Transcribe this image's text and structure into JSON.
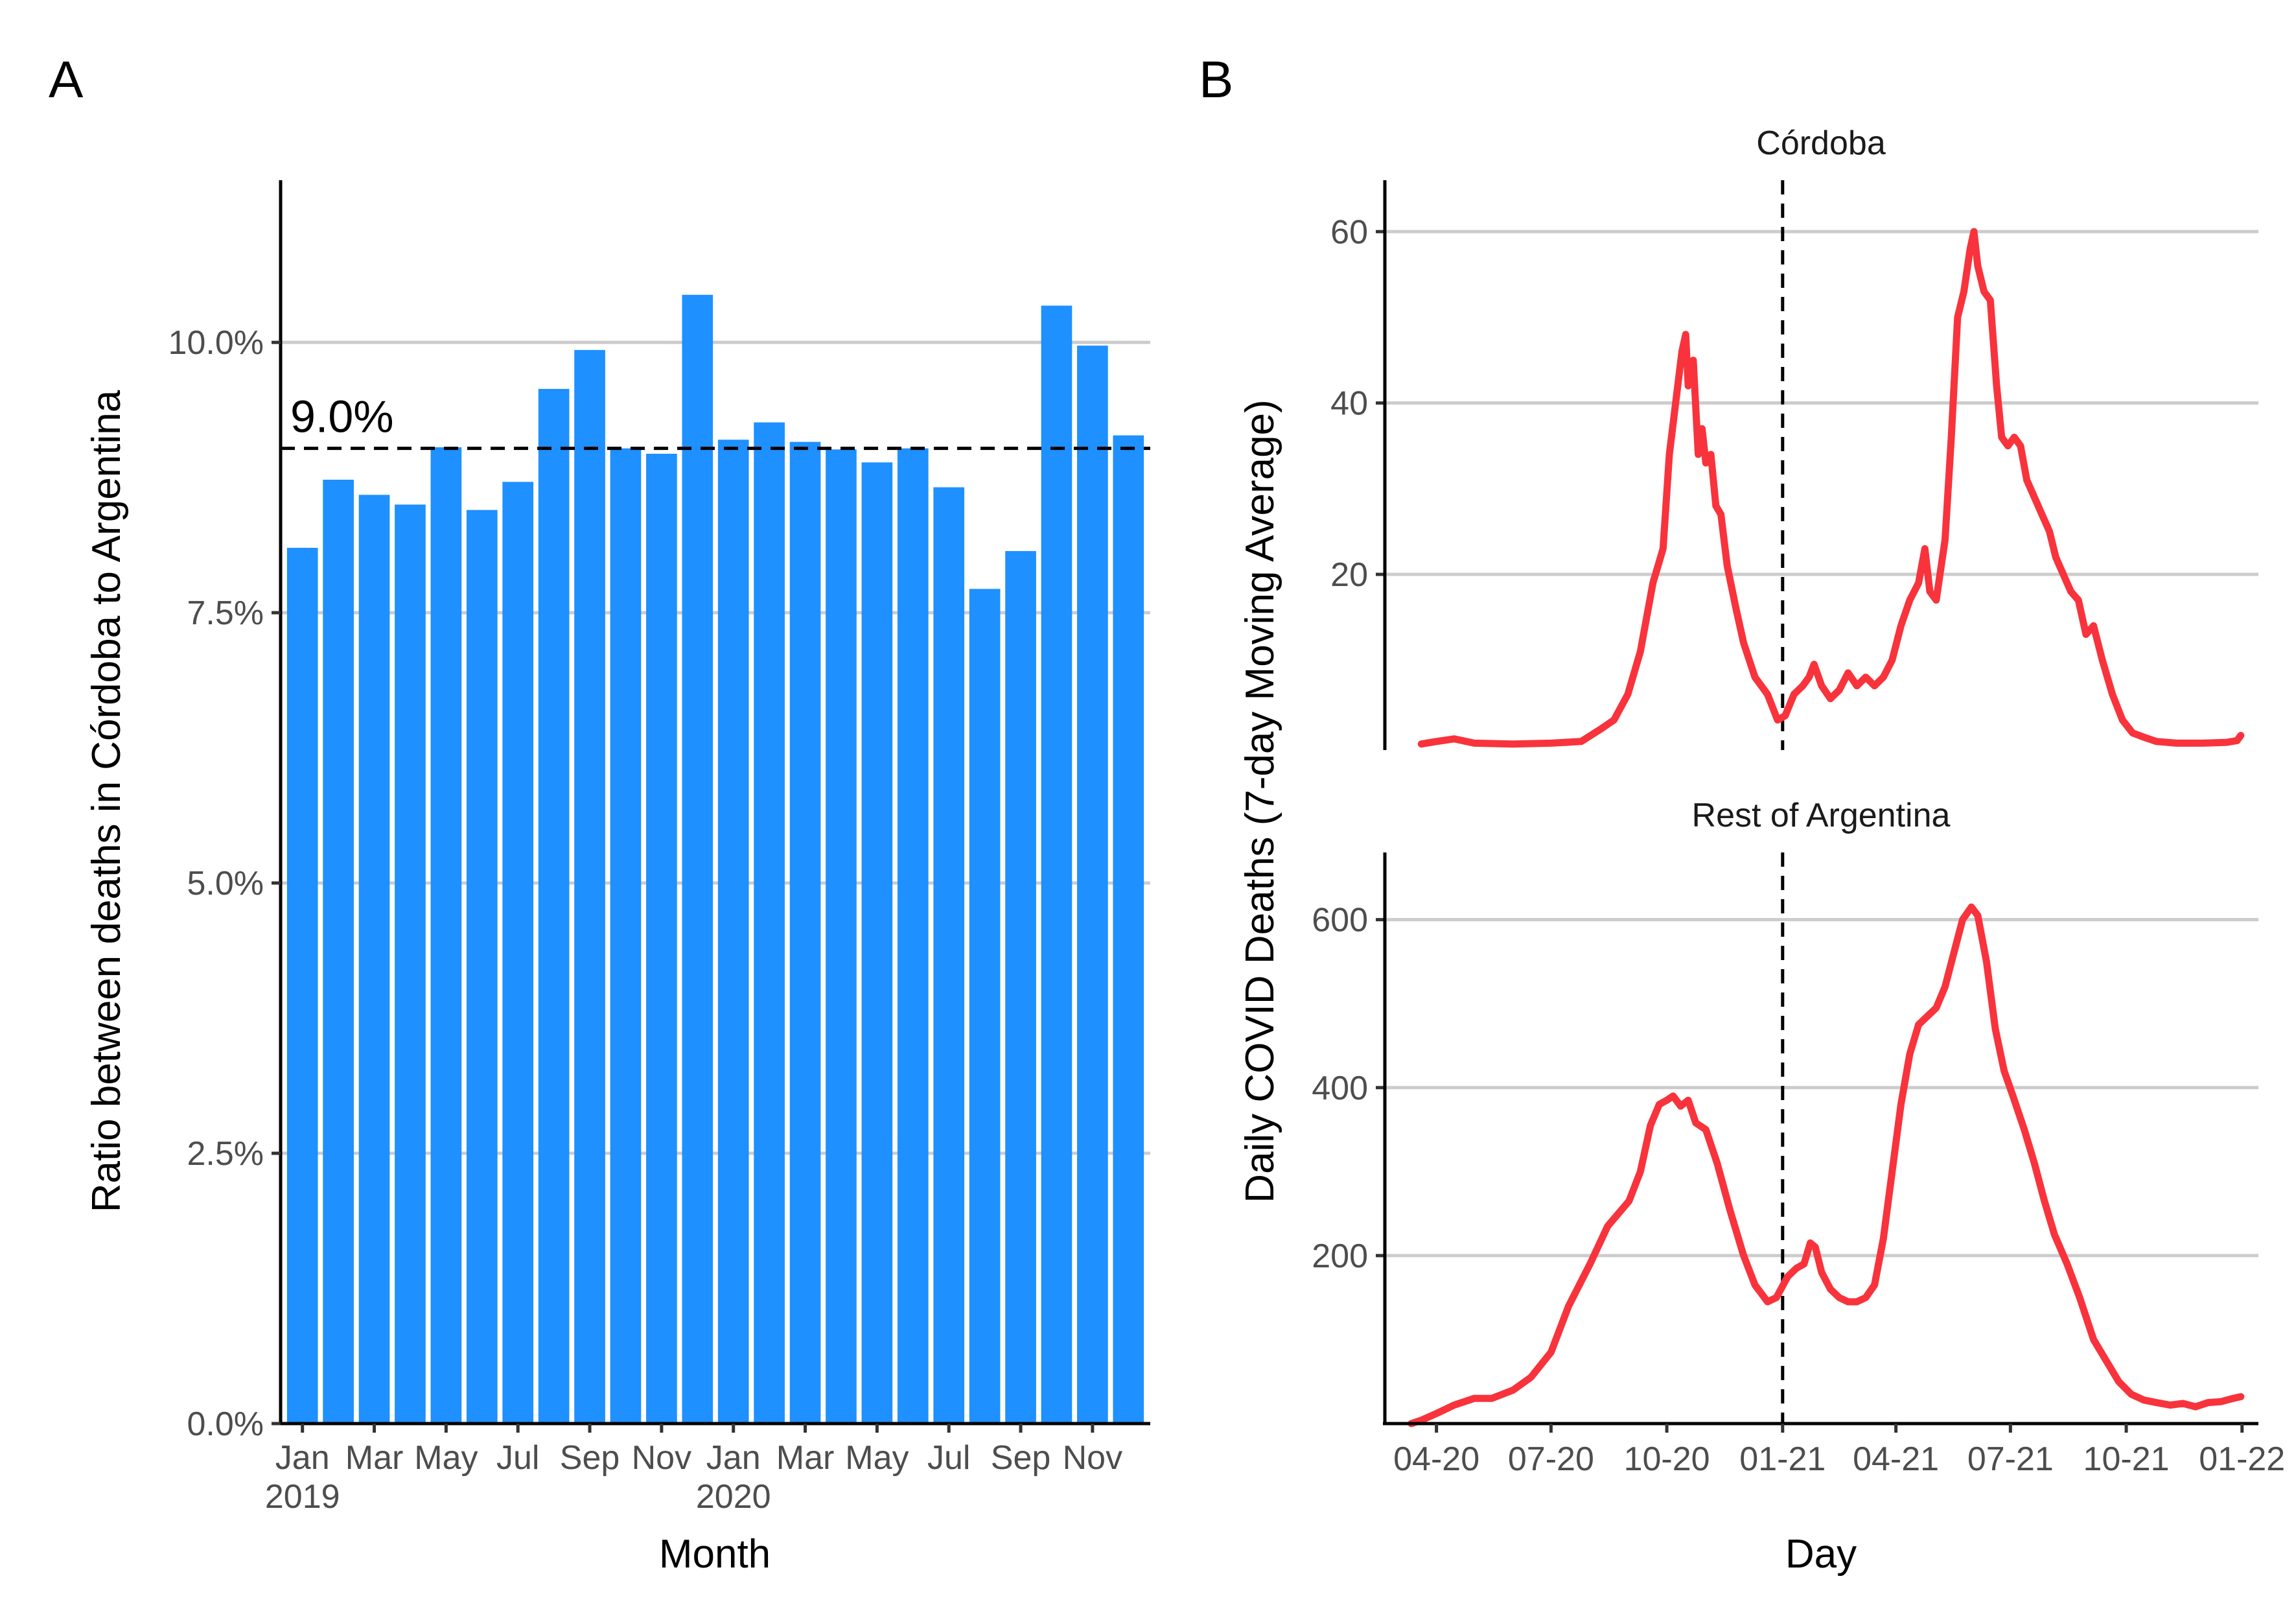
{
  "panel_a": {
    "tag": "A",
    "ref_label": "9.0%"
  },
  "panel_b": {
    "tag": "B"
  },
  "colors": {
    "bar": "#1e90ff",
    "line": "#f8333c",
    "grid": "#cccccc"
  },
  "chart_data": [
    {
      "type": "bar",
      "xlabel": "Month",
      "ylabel": "Ratio between deaths in Córdoba to Argentina",
      "ylim": [
        0,
        0.115
      ],
      "yticks": [
        0,
        0.025,
        0.05,
        0.075,
        0.1
      ],
      "ytick_labels": [
        "0.0%",
        "2.5%",
        "5.0%",
        "7.5%",
        "10.0%"
      ],
      "xtick_labels": [
        {
          "month": "Jan",
          "year": "2019",
          "index": 0
        },
        {
          "month": "Mar",
          "year": "",
          "index": 2
        },
        {
          "month": "May",
          "year": "",
          "index": 4
        },
        {
          "month": "Jul",
          "year": "",
          "index": 6
        },
        {
          "month": "Sep",
          "year": "",
          "index": 8
        },
        {
          "month": "Nov",
          "year": "",
          "index": 10
        },
        {
          "month": "Jan",
          "year": "2020",
          "index": 12
        },
        {
          "month": "Mar",
          "year": "",
          "index": 14
        },
        {
          "month": "May",
          "year": "",
          "index": 16
        },
        {
          "month": "Jul",
          "year": "",
          "index": 18
        },
        {
          "month": "Sep",
          "year": "",
          "index": 20
        },
        {
          "month": "Nov",
          "year": "",
          "index": 22
        }
      ],
      "categories": [
        "2019-01",
        "2019-02",
        "2019-03",
        "2019-04",
        "2019-05",
        "2019-06",
        "2019-07",
        "2019-08",
        "2019-09",
        "2019-10",
        "2019-11",
        "2019-12",
        "2020-01",
        "2020-02",
        "2020-03",
        "2020-04",
        "2020-05",
        "2020-06",
        "2020-07",
        "2020-08",
        "2020-09",
        "2020-10",
        "2020-11",
        "2020-12"
      ],
      "values": [
        0.081,
        0.0873,
        0.0859,
        0.085,
        0.0903,
        0.0845,
        0.0871,
        0.0957,
        0.0993,
        0.0902,
        0.0897,
        0.1044,
        0.091,
        0.0926,
        0.0908,
        0.0901,
        0.0889,
        0.0902,
        0.0866,
        0.0772,
        0.0807,
        0.1034,
        0.0997,
        0.0914
      ],
      "reference_line": 0.0902,
      "grid": "horizontal"
    },
    {
      "type": "line",
      "panel": "Córdoba",
      "xlabel": "Day",
      "ylabel": "Daily COVID Deaths (7-day Moving Average)",
      "yticks": [
        20,
        40,
        60
      ],
      "ylim": [
        -0.5,
        66
      ],
      "reference_date": "2021-01-01",
      "points": [
        [
          "2020-03-20",
          0.2
        ],
        [
          "2020-04-01",
          0.5
        ],
        [
          "2020-04-15",
          0.8
        ],
        [
          "2020-05-01",
          0.3
        ],
        [
          "2020-06-01",
          0.2
        ],
        [
          "2020-07-01",
          0.3
        ],
        [
          "2020-07-25",
          0.5
        ],
        [
          "2020-08-10",
          2
        ],
        [
          "2020-08-20",
          3
        ],
        [
          "2020-08-31",
          6
        ],
        [
          "2020-09-10",
          11
        ],
        [
          "2020-09-20",
          19
        ],
        [
          "2020-09-28",
          23
        ],
        [
          "2020-10-03",
          34
        ],
        [
          "2020-10-08",
          40
        ],
        [
          "2020-10-13",
          46
        ],
        [
          "2020-10-16",
          48
        ],
        [
          "2020-10-18",
          42
        ],
        [
          "2020-10-22",
          45
        ],
        [
          "2020-10-26",
          34
        ],
        [
          "2020-10-29",
          37
        ],
        [
          "2020-11-01",
          33
        ],
        [
          "2020-11-05",
          34
        ],
        [
          "2020-11-09",
          28
        ],
        [
          "2020-11-13",
          27
        ],
        [
          "2020-11-18",
          21
        ],
        [
          "2020-11-25",
          16
        ],
        [
          "2020-12-01",
          12
        ],
        [
          "2020-12-10",
          8
        ],
        [
          "2020-12-20",
          6
        ],
        [
          "2020-12-28",
          3
        ],
        [
          "2021-01-03",
          3.5
        ],
        [
          "2021-01-10",
          6
        ],
        [
          "2021-01-17",
          7
        ],
        [
          "2021-01-22",
          8
        ],
        [
          "2021-01-26",
          9.5
        ],
        [
          "2021-02-01",
          7
        ],
        [
          "2021-02-08",
          5.5
        ],
        [
          "2021-02-15",
          6.5
        ],
        [
          "2021-02-22",
          8.5
        ],
        [
          "2021-03-01",
          7
        ],
        [
          "2021-03-08",
          8
        ],
        [
          "2021-03-15",
          7
        ],
        [
          "2021-03-22",
          8
        ],
        [
          "2021-03-29",
          10
        ],
        [
          "2021-04-05",
          14
        ],
        [
          "2021-04-12",
          17
        ],
        [
          "2021-04-19",
          19
        ],
        [
          "2021-04-24",
          23
        ],
        [
          "2021-04-28",
          18
        ],
        [
          "2021-05-03",
          17
        ],
        [
          "2021-05-10",
          24
        ],
        [
          "2021-05-15",
          36
        ],
        [
          "2021-05-20",
          50
        ],
        [
          "2021-05-25",
          53
        ],
        [
          "2021-05-30",
          58
        ],
        [
          "2021-06-02",
          60
        ],
        [
          "2021-06-05",
          56
        ],
        [
          "2021-06-10",
          53
        ],
        [
          "2021-06-15",
          52
        ],
        [
          "2021-06-20",
          42
        ],
        [
          "2021-06-24",
          36
        ],
        [
          "2021-06-29",
          35
        ],
        [
          "2021-07-04",
          36
        ],
        [
          "2021-07-09",
          35
        ],
        [
          "2021-07-14",
          31
        ],
        [
          "2021-07-20",
          29
        ],
        [
          "2021-07-26",
          27
        ],
        [
          "2021-08-01",
          25
        ],
        [
          "2021-08-06",
          22
        ],
        [
          "2021-08-12",
          20
        ],
        [
          "2021-08-18",
          18
        ],
        [
          "2021-08-24",
          17
        ],
        [
          "2021-08-30",
          13
        ],
        [
          "2021-09-05",
          14
        ],
        [
          "2021-09-12",
          10
        ],
        [
          "2021-09-20",
          6
        ],
        [
          "2021-09-28",
          3
        ],
        [
          "2021-10-06",
          1.5
        ],
        [
          "2021-10-15",
          1
        ],
        [
          "2021-10-25",
          0.5
        ],
        [
          "2021-11-10",
          0.3
        ],
        [
          "2021-12-01",
          0.3
        ],
        [
          "2021-12-20",
          0.4
        ],
        [
          "2021-12-28",
          0.6
        ],
        [
          "2021-12-31",
          1.2
        ]
      ]
    },
    {
      "type": "line",
      "panel": "Rest of Argentina",
      "xlabel": "Day",
      "ylabel": "Daily COVID Deaths (7-day Moving Average)",
      "yticks": [
        200,
        400,
        600
      ],
      "ylim": [
        0,
        680
      ],
      "xticks": [
        "2020-04-01",
        "2020-07-01",
        "2020-10-01",
        "2021-01-01",
        "2021-04-01",
        "2021-07-01",
        "2021-10-01",
        "2022-01-01"
      ],
      "xtick_labels": [
        "04-20",
        "07-20",
        "10-20",
        "01-21",
        "04-21",
        "07-21",
        "10-21",
        "01-22"
      ],
      "xlim": [
        "2020-02-20",
        "2022-01-14"
      ],
      "reference_date": "2021-01-01",
      "points": [
        [
          "2020-03-12",
          0
        ],
        [
          "2020-03-20",
          4
        ],
        [
          "2020-04-01",
          12
        ],
        [
          "2020-04-15",
          22
        ],
        [
          "2020-05-01",
          30
        ],
        [
          "2020-05-15",
          30
        ],
        [
          "2020-06-01",
          40
        ],
        [
          "2020-06-15",
          55
        ],
        [
          "2020-07-01",
          85
        ],
        [
          "2020-07-15",
          140
        ],
        [
          "2020-08-01",
          190
        ],
        [
          "2020-08-15",
          235
        ],
        [
          "2020-09-01",
          265
        ],
        [
          "2020-09-10",
          300
        ],
        [
          "2020-09-18",
          355
        ],
        [
          "2020-09-25",
          380
        ],
        [
          "2020-10-01",
          385
        ],
        [
          "2020-10-06",
          390
        ],
        [
          "2020-10-12",
          378
        ],
        [
          "2020-10-18",
          385
        ],
        [
          "2020-10-24",
          358
        ],
        [
          "2020-11-01",
          350
        ],
        [
          "2020-11-10",
          310
        ],
        [
          "2020-11-20",
          255
        ],
        [
          "2020-12-01",
          200
        ],
        [
          "2020-12-10",
          165
        ],
        [
          "2020-12-20",
          145
        ],
        [
          "2020-12-27",
          150
        ],
        [
          "2021-01-05",
          175
        ],
        [
          "2021-01-12",
          185
        ],
        [
          "2021-01-18",
          190
        ],
        [
          "2021-01-23",
          215
        ],
        [
          "2021-01-27",
          210
        ],
        [
          "2021-02-01",
          180
        ],
        [
          "2021-02-08",
          160
        ],
        [
          "2021-02-15",
          150
        ],
        [
          "2021-02-22",
          145
        ],
        [
          "2021-03-01",
          145
        ],
        [
          "2021-03-08",
          150
        ],
        [
          "2021-03-15",
          165
        ],
        [
          "2021-03-22",
          220
        ],
        [
          "2021-03-29",
          300
        ],
        [
          "2021-04-05",
          380
        ],
        [
          "2021-04-12",
          440
        ],
        [
          "2021-04-19",
          475
        ],
        [
          "2021-04-26",
          485
        ],
        [
          "2021-05-03",
          495
        ],
        [
          "2021-05-10",
          520
        ],
        [
          "2021-05-17",
          560
        ],
        [
          "2021-05-24",
          600
        ],
        [
          "2021-05-31",
          615
        ],
        [
          "2021-06-05",
          605
        ],
        [
          "2021-06-12",
          550
        ],
        [
          "2021-06-19",
          470
        ],
        [
          "2021-06-26",
          420
        ],
        [
          "2021-07-03",
          390
        ],
        [
          "2021-07-12",
          350
        ],
        [
          "2021-07-20",
          310
        ],
        [
          "2021-07-28",
          265
        ],
        [
          "2021-08-05",
          225
        ],
        [
          "2021-08-15",
          190
        ],
        [
          "2021-08-25",
          150
        ],
        [
          "2021-09-05",
          100
        ],
        [
          "2021-09-15",
          75
        ],
        [
          "2021-09-25",
          50
        ],
        [
          "2021-10-05",
          35
        ],
        [
          "2021-10-15",
          28
        ],
        [
          "2021-10-25",
          25
        ],
        [
          "2021-11-05",
          22
        ],
        [
          "2021-11-15",
          24
        ],
        [
          "2021-11-25",
          20
        ],
        [
          "2021-12-05",
          25
        ],
        [
          "2021-12-15",
          26
        ],
        [
          "2021-12-25",
          30
        ],
        [
          "2021-12-31",
          32
        ]
      ]
    }
  ]
}
